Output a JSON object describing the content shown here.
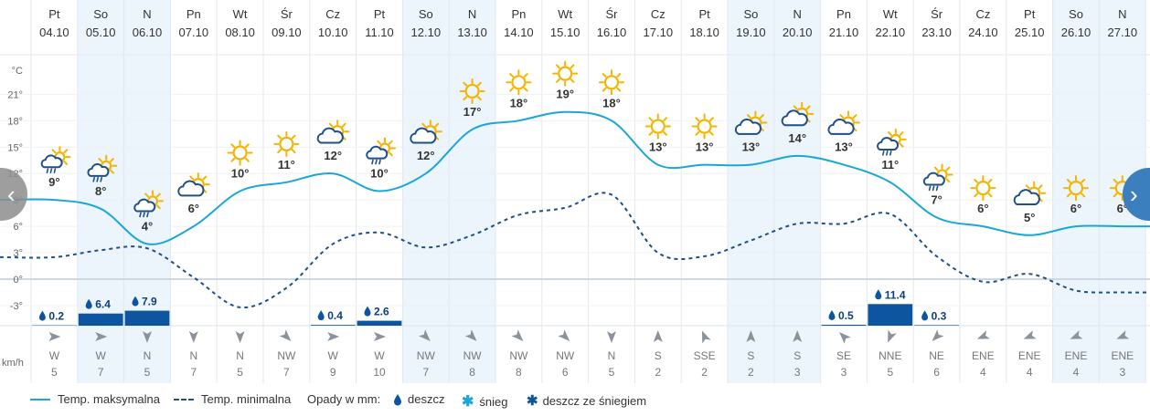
{
  "days": [
    {
      "dow": "Pt",
      "date": "04.10",
      "tmax": 9,
      "tmax_label": "9°",
      "tmin": 2.5,
      "icon": "sun-cloud-rain-icon",
      "precip": 0.2,
      "precip_label": "0.2",
      "wind_dir": "W",
      "wind_speed": "5",
      "weekend": false
    },
    {
      "dow": "So",
      "date": "05.10",
      "tmax": 8,
      "tmax_label": "8°",
      "tmin": 3.3,
      "icon": "sun-cloud-rain-icon",
      "precip": 6.4,
      "precip_label": "6.4",
      "wind_dir": "W",
      "wind_speed": "7",
      "weekend": true
    },
    {
      "dow": "N",
      "date": "06.10",
      "tmax": 4,
      "tmax_label": "4°",
      "tmin": 3.5,
      "icon": "sun-cloud-rain-icon",
      "precip": 7.9,
      "precip_label": "7.9",
      "wind_dir": "N",
      "wind_speed": "5",
      "weekend": true
    },
    {
      "dow": "Pn",
      "date": "07.10",
      "tmax": 6,
      "tmax_label": "6°",
      "tmin": 0.2,
      "icon": "sun-cloud-icon",
      "precip": 0,
      "precip_label": "",
      "wind_dir": "N",
      "wind_speed": "7",
      "weekend": false
    },
    {
      "dow": "Wt",
      "date": "08.10",
      "tmax": 10,
      "tmax_label": "10°",
      "tmin": -3.2,
      "icon": "sun-icon",
      "precip": 0,
      "precip_label": "",
      "wind_dir": "N",
      "wind_speed": "5",
      "weekend": false
    },
    {
      "dow": "Śr",
      "date": "09.10",
      "tmax": 11,
      "tmax_label": "11°",
      "tmin": -1.0,
      "icon": "sun-icon",
      "precip": 0,
      "precip_label": "",
      "wind_dir": "NW",
      "wind_speed": "7",
      "weekend": false
    },
    {
      "dow": "Cz",
      "date": "10.10",
      "tmax": 12,
      "tmax_label": "12°",
      "tmin": 4.0,
      "icon": "sun-cloud-icon",
      "precip": 0.4,
      "precip_label": "0.4",
      "wind_dir": "W",
      "wind_speed": "9",
      "weekend": false
    },
    {
      "dow": "Pt",
      "date": "11.10",
      "tmax": 10,
      "tmax_label": "10°",
      "tmin": 5.3,
      "icon": "sun-cloud-rain-icon",
      "precip": 2.6,
      "precip_label": "2.6",
      "wind_dir": "W",
      "wind_speed": "10",
      "weekend": false
    },
    {
      "dow": "So",
      "date": "12.10",
      "tmax": 12,
      "tmax_label": "12°",
      "tmin": 3.6,
      "icon": "sun-cloud-icon",
      "precip": 0,
      "precip_label": "",
      "wind_dir": "NW",
      "wind_speed": "7",
      "weekend": true
    },
    {
      "dow": "N",
      "date": "13.10",
      "tmax": 17,
      "tmax_label": "17°",
      "tmin": 5.0,
      "icon": "sun-icon",
      "precip": 0,
      "precip_label": "",
      "wind_dir": "NW",
      "wind_speed": "8",
      "weekend": true
    },
    {
      "dow": "Pn",
      "date": "14.10",
      "tmax": 18,
      "tmax_label": "18°",
      "tmin": 7.3,
      "icon": "sun-icon",
      "precip": 0,
      "precip_label": "",
      "wind_dir": "NW",
      "wind_speed": "8",
      "weekend": false
    },
    {
      "dow": "Wt",
      "date": "15.10",
      "tmax": 19,
      "tmax_label": "19°",
      "tmin": 8.1,
      "icon": "sun-icon",
      "precip": 0,
      "precip_label": "",
      "wind_dir": "NW",
      "wind_speed": "6",
      "weekend": false
    },
    {
      "dow": "Śr",
      "date": "16.10",
      "tmax": 18,
      "tmax_label": "18°",
      "tmin": 9.6,
      "icon": "sun-icon",
      "precip": 0,
      "precip_label": "",
      "wind_dir": "N",
      "wind_speed": "5",
      "weekend": false
    },
    {
      "dow": "Cz",
      "date": "17.10",
      "tmax": 13,
      "tmax_label": "13°",
      "tmin": 3.0,
      "icon": "sun-icon",
      "precip": 0,
      "precip_label": "",
      "wind_dir": "S",
      "wind_speed": "2",
      "weekend": false
    },
    {
      "dow": "Pt",
      "date": "18.10",
      "tmax": 13,
      "tmax_label": "13°",
      "tmin": 2.6,
      "icon": "sun-icon",
      "precip": 0,
      "precip_label": "",
      "wind_dir": "SSE",
      "wind_speed": "2",
      "weekend": false
    },
    {
      "dow": "So",
      "date": "19.10",
      "tmax": 13,
      "tmax_label": "13°",
      "tmin": 4.4,
      "icon": "sun-cloud-icon",
      "precip": 0,
      "precip_label": "",
      "wind_dir": "S",
      "wind_speed": "2",
      "weekend": true
    },
    {
      "dow": "N",
      "date": "20.10",
      "tmax": 14,
      "tmax_label": "14°",
      "tmin": 6.3,
      "icon": "sun-cloud-icon",
      "precip": 0,
      "precip_label": "",
      "wind_dir": "S",
      "wind_speed": "3",
      "weekend": true
    },
    {
      "dow": "Pn",
      "date": "21.10",
      "tmax": 13,
      "tmax_label": "13°",
      "tmin": 6.3,
      "icon": "sun-cloud-icon",
      "precip": 0.5,
      "precip_label": "0.5",
      "wind_dir": "SE",
      "wind_speed": "3",
      "weekend": false
    },
    {
      "dow": "Wt",
      "date": "22.10",
      "tmax": 11,
      "tmax_label": "11°",
      "tmin": 7.4,
      "icon": "sun-cloud-rain-icon",
      "precip": 11.4,
      "precip_label": "11.4",
      "wind_dir": "NNE",
      "wind_speed": "5",
      "weekend": false
    },
    {
      "dow": "Śr",
      "date": "23.10",
      "tmax": 7,
      "tmax_label": "7°",
      "tmin": 2.6,
      "icon": "sun-cloud-rain-icon",
      "precip": 0.3,
      "precip_label": "0.3",
      "wind_dir": "NE",
      "wind_speed": "6",
      "weekend": false
    },
    {
      "dow": "Cz",
      "date": "24.10",
      "tmax": 6,
      "tmax_label": "6°",
      "tmin": -0.3,
      "icon": "sun-icon",
      "precip": 0,
      "precip_label": "",
      "wind_dir": "ENE",
      "wind_speed": "4",
      "weekend": false
    },
    {
      "dow": "Pt",
      "date": "25.10",
      "tmax": 5,
      "tmax_label": "5°",
      "tmin": 0.6,
      "icon": "sun-cloud-icon",
      "precip": 0,
      "precip_label": "",
      "wind_dir": "ENE",
      "wind_speed": "4",
      "weekend": false
    },
    {
      "dow": "So",
      "date": "26.10",
      "tmax": 6,
      "tmax_label": "6°",
      "tmin": -1.3,
      "icon": "sun-icon",
      "precip": 0,
      "precip_label": "",
      "wind_dir": "ENE",
      "wind_speed": "4",
      "weekend": true
    },
    {
      "dow": "N",
      "date": "27.10",
      "tmax": 6,
      "tmax_label": "6°",
      "tmin": -1.5,
      "icon": "sun-icon",
      "precip": 0,
      "precip_label": "",
      "wind_dir": "ENE",
      "wind_speed": "3",
      "weekend": true
    }
  ],
  "axis": {
    "unit_label": "°C",
    "ticks": [
      "21°",
      "18°",
      "15°",
      "12°",
      "9°",
      "6°",
      "3°",
      "0°",
      "-3°"
    ],
    "wind_unit": "km/h"
  },
  "legend": {
    "tmax": "Temp. maksymalna",
    "tmin": "Temp. minimalna",
    "precip_title": "Opady w mm:",
    "rain": "deszcz",
    "snow": "śnieg",
    "sleet": "deszcz ze śniegiem"
  },
  "nav": {
    "prev": "‹",
    "next": "›"
  },
  "colors": {
    "tmax_line": "#1aa7d8",
    "tmin_line": "#1f4f8a",
    "precip_bar": "#0e55a0",
    "weekend_bg": "#ecf4fc",
    "sun": "#f5b400"
  },
  "chart_data": {
    "type": "line",
    "x": [
      "04.10",
      "05.10",
      "06.10",
      "07.10",
      "08.10",
      "09.10",
      "10.10",
      "11.10",
      "12.10",
      "13.10",
      "14.10",
      "15.10",
      "16.10",
      "17.10",
      "18.10",
      "19.10",
      "20.10",
      "21.10",
      "22.10",
      "23.10",
      "24.10",
      "25.10",
      "26.10",
      "27.10"
    ],
    "series": [
      {
        "name": "Temp. maksymalna",
        "values": [
          9,
          8,
          4,
          6,
          10,
          11,
          12,
          10,
          12,
          17,
          18,
          19,
          18,
          13,
          13,
          13,
          14,
          13,
          11,
          7,
          6,
          5,
          6,
          6
        ]
      },
      {
        "name": "Temp. minimalna",
        "values": [
          2.5,
          3.3,
          3.5,
          0.2,
          -3.2,
          -1.0,
          4.0,
          5.3,
          3.6,
          5.0,
          7.3,
          8.1,
          9.6,
          3.0,
          2.6,
          4.4,
          6.3,
          6.3,
          7.4,
          2.6,
          -0.3,
          0.6,
          -1.3,
          -1.5
        ]
      }
    ],
    "bars": {
      "name": "Opady w mm: deszcz",
      "values": [
        0.2,
        6.4,
        7.9,
        0,
        0,
        0,
        0.4,
        2.6,
        0,
        0,
        0,
        0,
        0,
        0,
        0,
        0,
        0,
        0.5,
        11.4,
        0.3,
        0,
        0,
        0,
        0
      ]
    },
    "ylabel": "°C",
    "ylim": [
      -3,
      21
    ],
    "grid": true,
    "legend_position": "bottom"
  }
}
